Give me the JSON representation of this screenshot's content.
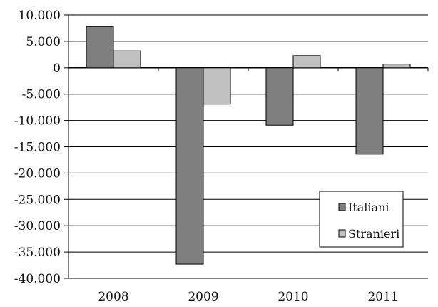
{
  "chart_data": {
    "type": "bar",
    "categories": [
      "2008",
      "2009",
      "2010",
      "2011"
    ],
    "series": [
      {
        "name": "Italiani",
        "values": [
          7800,
          -37300,
          -10900,
          -16400
        ],
        "color": "#7f7f7f"
      },
      {
        "name": "Stranieri",
        "values": [
          3200,
          -6900,
          2300,
          700
        ],
        "color": "#c0c0c0"
      }
    ],
    "ylim": [
      -40000,
      10000
    ],
    "yticks": [
      10000,
      5000,
      0,
      -5000,
      -10000,
      -15000,
      -20000,
      -25000,
      -30000,
      -35000,
      -40000
    ],
    "ytick_labels": [
      "10.000",
      "5.000",
      "0",
      "-5.000",
      "-10.000",
      "-15.000",
      "-20.000",
      "-25.000",
      "-30.000",
      "-35.000",
      "-40.000"
    ],
    "grid": true,
    "legend_position": "bottom-right"
  }
}
